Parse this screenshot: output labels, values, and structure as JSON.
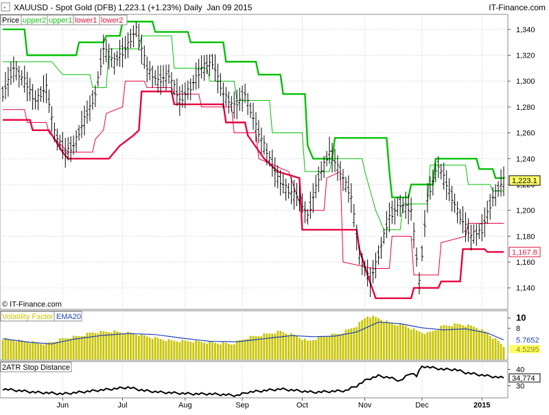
{
  "header": {
    "symbol": "XAUUSD - Spot Gold (DFB)",
    "price_change": "1,223.1 (+1.23%)",
    "period": "Daily  Jan 09 2015",
    "brand": "IT-Finance.com"
  },
  "legend": {
    "items": [
      {
        "label": "Price",
        "color": "#000000"
      },
      {
        "label": "upper2",
        "color": "#19c219"
      },
      {
        "label": "upper1",
        "color": "#19c219"
      },
      {
        "label": "lower1",
        "color": "#e2163c"
      },
      {
        "label": "lower2",
        "color": "#e2163c"
      }
    ]
  },
  "watermark": "© IT-Finance.com",
  "colors": {
    "upper2": "#00c000",
    "upper1": "#00c000",
    "lower2": "#e8003c",
    "lower1": "#e8003c",
    "price": "#000000",
    "volatility_bar": "#c8c400",
    "ema": "#1f3fbf",
    "atr": "#000000",
    "current_price_badge": "#ffff66",
    "lower_badge": "#ffffff"
  },
  "chart_data": [
    {
      "type": "line",
      "name": "price-panel",
      "ylim": [
        1125,
        1350
      ],
      "y_ticks": [
        {
          "value": 1140,
          "label": "1,140"
        },
        {
          "value": 1160,
          "label": "1,160"
        },
        {
          "value": 1180,
          "label": "1,180"
        },
        {
          "value": 1200,
          "label": "1,200"
        },
        {
          "value": 1220,
          "label": "1,220"
        },
        {
          "value": 1240,
          "label": "1,240"
        },
        {
          "value": 1260,
          "label": "1,260"
        },
        {
          "value": 1280,
          "label": "1,280"
        },
        {
          "value": 1300,
          "label": "1,300"
        },
        {
          "value": 1320,
          "label": "1,320"
        },
        {
          "value": 1340,
          "label": "1,340"
        }
      ],
      "x_ticks": [
        {
          "label": "Jun",
          "index": 22
        },
        {
          "label": "Jul",
          "index": 44
        },
        {
          "label": "Aug",
          "index": 67
        },
        {
          "label": "Sep",
          "index": 88
        },
        {
          "label": "Oct",
          "index": 110
        },
        {
          "label": "Nov",
          "index": 133
        },
        {
          "label": "Dec",
          "index": 154
        },
        {
          "label": "2015",
          "index": 176
        }
      ],
      "n": 185,
      "price": [
        [
          0,
          1290
        ],
        [
          4,
          1310
        ],
        [
          8,
          1300
        ],
        [
          12,
          1285
        ],
        [
          16,
          1295
        ],
        [
          19,
          1260
        ],
        [
          23,
          1245
        ],
        [
          26,
          1250
        ],
        [
          30,
          1270
        ],
        [
          34,
          1290
        ],
        [
          37,
          1325
        ],
        [
          41,
          1315
        ],
        [
          45,
          1325
        ],
        [
          49,
          1340
        ],
        [
          53,
          1310
        ],
        [
          57,
          1300
        ],
        [
          61,
          1305
        ],
        [
          65,
          1285
        ],
        [
          69,
          1295
        ],
        [
          73,
          1310
        ],
        [
          77,
          1315
        ],
        [
          81,
          1290
        ],
        [
          85,
          1280
        ],
        [
          89,
          1290
        ],
        [
          93,
          1265
        ],
        [
          97,
          1245
        ],
        [
          101,
          1225
        ],
        [
          105,
          1215
        ],
        [
          109,
          1210
        ],
        [
          112,
          1195
        ],
        [
          116,
          1225
        ],
        [
          120,
          1245
        ],
        [
          124,
          1230
        ],
        [
          128,
          1210
        ],
        [
          131,
          1165
        ],
        [
          135,
          1145
        ],
        [
          138,
          1165
        ],
        [
          142,
          1195
        ],
        [
          146,
          1205
        ],
        [
          150,
          1200
        ],
        [
          153,
          1145
        ],
        [
          156,
          1210
        ],
        [
          160,
          1235
        ],
        [
          164,
          1215
        ],
        [
          168,
          1195
        ],
        [
          172,
          1180
        ],
        [
          176,
          1185
        ],
        [
          180,
          1210
        ],
        [
          184,
          1223
        ]
      ],
      "upper2": [
        [
          0,
          1340
        ],
        [
          8,
          1340
        ],
        [
          9,
          1320
        ],
        [
          27,
          1320
        ],
        [
          28,
          1330
        ],
        [
          37,
          1330
        ],
        [
          38,
          1335
        ],
        [
          43,
          1335
        ],
        [
          44,
          1346
        ],
        [
          55,
          1346
        ],
        [
          56,
          1338
        ],
        [
          68,
          1338
        ],
        [
          69,
          1330
        ],
        [
          81,
          1330
        ],
        [
          82,
          1315
        ],
        [
          93,
          1315
        ],
        [
          94,
          1305
        ],
        [
          102,
          1305
        ],
        [
          103,
          1290
        ],
        [
          111,
          1290
        ],
        [
          112,
          1250
        ],
        [
          114,
          1240
        ],
        [
          121,
          1240
        ],
        [
          122,
          1256
        ],
        [
          141,
          1256
        ],
        [
          142,
          1230
        ],
        [
          143,
          1210
        ],
        [
          149,
          1210
        ],
        [
          150,
          1220
        ],
        [
          158,
          1220
        ],
        [
          159,
          1240
        ],
        [
          174,
          1240
        ],
        [
          175,
          1232
        ],
        [
          180,
          1232
        ],
        [
          181,
          1225
        ],
        [
          184,
          1225
        ]
      ],
      "upper1": [
        [
          0,
          1315
        ],
        [
          18,
          1315
        ],
        [
          22,
          1305
        ],
        [
          32,
          1305
        ],
        [
          33,
          1295
        ],
        [
          38,
          1295
        ],
        [
          39,
          1325
        ],
        [
          50,
          1325
        ],
        [
          51,
          1335
        ],
        [
          62,
          1335
        ],
        [
          63,
          1310
        ],
        [
          75,
          1310
        ],
        [
          76,
          1300
        ],
        [
          85,
          1300
        ],
        [
          86,
          1285
        ],
        [
          98,
          1285
        ],
        [
          99,
          1260
        ],
        [
          110,
          1260
        ],
        [
          111,
          1230
        ],
        [
          120,
          1230
        ],
        [
          121,
          1240
        ],
        [
          132,
          1240
        ],
        [
          133,
          1230
        ],
        [
          137,
          1200
        ],
        [
          140,
          1185
        ],
        [
          146,
          1185
        ],
        [
          147,
          1205
        ],
        [
          156,
          1205
        ],
        [
          157,
          1235
        ],
        [
          170,
          1235
        ],
        [
          171,
          1220
        ],
        [
          179,
          1220
        ],
        [
          180,
          1215
        ],
        [
          184,
          1215
        ]
      ],
      "lower1": [
        [
          0,
          1278
        ],
        [
          8,
          1278
        ],
        [
          9,
          1268
        ],
        [
          16,
          1268
        ],
        [
          17,
          1260
        ],
        [
          24,
          1245
        ],
        [
          33,
          1245
        ],
        [
          34,
          1255
        ],
        [
          37,
          1262
        ],
        [
          38,
          1275
        ],
        [
          44,
          1280
        ],
        [
          45,
          1300
        ],
        [
          52,
          1300
        ],
        [
          53,
          1295
        ],
        [
          62,
          1295
        ],
        [
          63,
          1290
        ],
        [
          72,
          1290
        ],
        [
          73,
          1280
        ],
        [
          84,
          1280
        ],
        [
          85,
          1260
        ],
        [
          93,
          1260
        ],
        [
          94,
          1240
        ],
        [
          105,
          1230
        ],
        [
          110,
          1200
        ],
        [
          118,
          1200
        ],
        [
          119,
          1225
        ],
        [
          124,
          1230
        ],
        [
          125,
          1160
        ],
        [
          136,
          1155
        ],
        [
          142,
          1155
        ],
        [
          143,
          1180
        ],
        [
          150,
          1180
        ],
        [
          151,
          1150
        ],
        [
          160,
          1150
        ],
        [
          161,
          1175
        ],
        [
          170,
          1180
        ],
        [
          171,
          1190
        ],
        [
          184,
          1190
        ]
      ],
      "lower2": [
        [
          0,
          1270
        ],
        [
          10,
          1270
        ],
        [
          11,
          1262
        ],
        [
          17,
          1262
        ],
        [
          22,
          1245
        ],
        [
          24,
          1240
        ],
        [
          39,
          1240
        ],
        [
          43,
          1250
        ],
        [
          48,
          1258
        ],
        [
          50,
          1262
        ],
        [
          51,
          1292
        ],
        [
          62,
          1292
        ],
        [
          63,
          1282
        ],
        [
          81,
          1282
        ],
        [
          82,
          1268
        ],
        [
          89,
          1268
        ],
        [
          90,
          1258
        ],
        [
          96,
          1240
        ],
        [
          101,
          1230
        ],
        [
          109,
          1225
        ],
        [
          110,
          1185
        ],
        [
          130,
          1185
        ],
        [
          131,
          1170
        ],
        [
          134,
          1150
        ],
        [
          137,
          1132
        ],
        [
          150,
          1132
        ],
        [
          151,
          1140
        ],
        [
          160,
          1140
        ],
        [
          161,
          1145
        ],
        [
          168,
          1145
        ],
        [
          169,
          1170
        ],
        [
          177,
          1170
        ],
        [
          178,
          1167.8
        ],
        [
          184,
          1167.8
        ]
      ],
      "current_price": {
        "value": 1223.1,
        "label": "1,223.1"
      },
      "lower_marker": {
        "value": 1167.8,
        "label": "1,167.8"
      }
    },
    {
      "type": "bar",
      "name": "volatility-panel",
      "ylim": [
        2,
        11
      ],
      "legend": [
        "Volatility Factor",
        "EMA20"
      ],
      "y_ticks": [
        {
          "value": 10,
          "label": "10"
        },
        {
          "value": 8,
          "label": "8"
        }
      ],
      "values_points": [
        [
          0,
          6.0
        ],
        [
          8,
          5.5
        ],
        [
          16,
          5.0
        ],
        [
          22,
          6.0
        ],
        [
          28,
          6.5
        ],
        [
          33,
          7.2
        ],
        [
          40,
          7.4
        ],
        [
          48,
          7.0
        ],
        [
          55,
          6.2
        ],
        [
          62,
          5.6
        ],
        [
          70,
          5.5
        ],
        [
          78,
          5.2
        ],
        [
          84,
          5.0
        ],
        [
          90,
          6.2
        ],
        [
          96,
          6.8
        ],
        [
          102,
          7.4
        ],
        [
          108,
          6.5
        ],
        [
          112,
          5.5
        ],
        [
          118,
          6.5
        ],
        [
          124,
          7.0
        ],
        [
          130,
          8.5
        ],
        [
          134,
          10.4
        ],
        [
          138,
          10.0
        ],
        [
          142,
          9.0
        ],
        [
          148,
          8.5
        ],
        [
          152,
          7.5
        ],
        [
          156,
          7.0
        ],
        [
          162,
          8.5
        ],
        [
          168,
          8.8
        ],
        [
          174,
          8.2
        ],
        [
          178,
          7.0
        ],
        [
          182,
          5.5
        ],
        [
          184,
          4.53
        ]
      ],
      "ema_points": [
        [
          0,
          6.0
        ],
        [
          10,
          5.3
        ],
        [
          18,
          5.0
        ],
        [
          26,
          5.9
        ],
        [
          36,
          6.6
        ],
        [
          46,
          7.0
        ],
        [
          56,
          6.8
        ],
        [
          66,
          6.1
        ],
        [
          76,
          5.5
        ],
        [
          86,
          5.4
        ],
        [
          96,
          6.0
        ],
        [
          106,
          6.6
        ],
        [
          114,
          6.4
        ],
        [
          122,
          6.5
        ],
        [
          130,
          7.3
        ],
        [
          138,
          9.2
        ],
        [
          146,
          8.9
        ],
        [
          154,
          8.1
        ],
        [
          162,
          7.7
        ],
        [
          170,
          7.9
        ],
        [
          178,
          7.1
        ],
        [
          184,
          5.77
        ]
      ],
      "ema_label": "5.7652",
      "value_label": "4.5295"
    },
    {
      "type": "line",
      "name": "atr-panel",
      "ylim": [
        23,
        44
      ],
      "legend": [
        "2ATR Stop Distance"
      ],
      "y_ticks": [
        {
          "value": 40,
          "label": "40"
        },
        {
          "value": 30,
          "label": "30"
        }
      ],
      "points": [
        [
          0,
          28
        ],
        [
          6,
          27
        ],
        [
          12,
          26
        ],
        [
          18,
          25.5
        ],
        [
          22,
          25
        ],
        [
          28,
          26
        ],
        [
          34,
          27
        ],
        [
          40,
          28
        ],
        [
          46,
          29
        ],
        [
          52,
          27
        ],
        [
          58,
          26
        ],
        [
          64,
          25.5
        ],
        [
          70,
          25
        ],
        [
          76,
          25
        ],
        [
          82,
          24.5
        ],
        [
          86,
          24
        ],
        [
          90,
          26
        ],
        [
          96,
          27
        ],
        [
          102,
          28
        ],
        [
          108,
          27
        ],
        [
          114,
          26
        ],
        [
          120,
          26.5
        ],
        [
          126,
          27
        ],
        [
          130,
          30
        ],
        [
          134,
          34
        ],
        [
          138,
          36
        ],
        [
          142,
          35
        ],
        [
          146,
          33
        ],
        [
          150,
          38
        ],
        [
          152,
          36
        ],
        [
          154,
          42
        ],
        [
          158,
          41
        ],
        [
          162,
          40
        ],
        [
          166,
          40
        ],
        [
          170,
          38
        ],
        [
          174,
          37
        ],
        [
          178,
          36
        ],
        [
          184,
          34.77
        ]
      ],
      "value_label": "34,774"
    }
  ]
}
